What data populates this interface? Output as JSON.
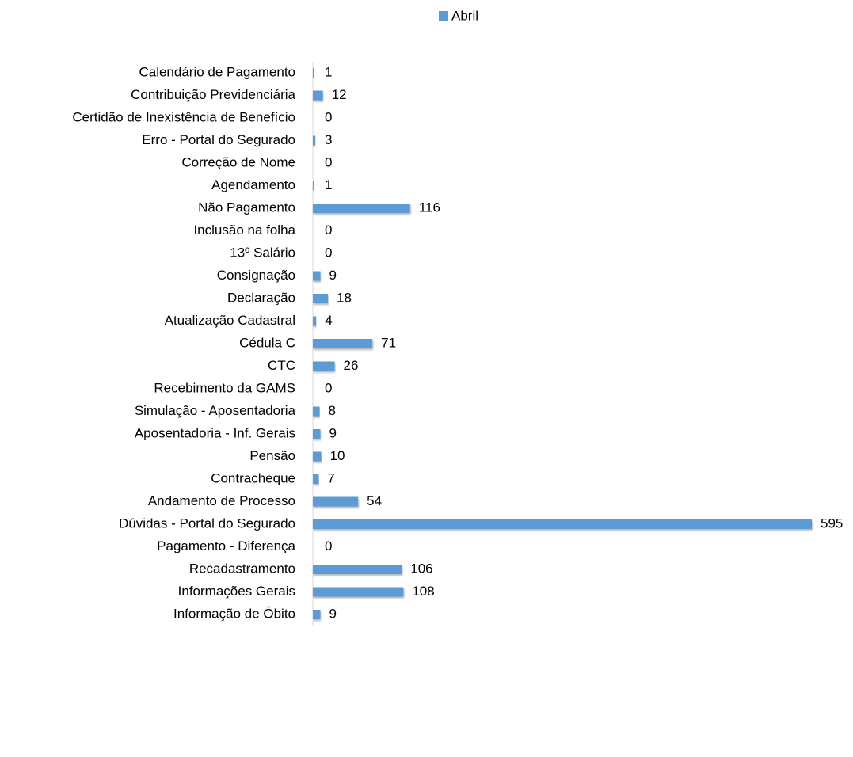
{
  "chart_data": {
    "type": "bar",
    "orientation": "horizontal",
    "legend": "top",
    "series": [
      {
        "name": "Abril",
        "color": "#5b9bd5",
        "values": [
          1,
          12,
          0,
          3,
          0,
          1,
          116,
          0,
          0,
          9,
          18,
          4,
          71,
          26,
          0,
          8,
          9,
          10,
          7,
          54,
          595,
          0,
          106,
          108,
          9
        ]
      }
    ],
    "categories": [
      "Calendário de Pagamento",
      "Contribuição Previdenciária",
      "Certidão de Inexistência de Benefício",
      "Erro - Portal do Segurado",
      "Correção de Nome",
      "Agendamento",
      "Não Pagamento",
      "Inclusão na folha",
      "13º Salário",
      "Consignação",
      "Declaração",
      "Atualização Cadastral",
      "Cédula C",
      "CTC",
      "Recebimento da GAMS",
      "Simulação - Aposentadoria",
      "Aposentadoria - Inf. Gerais",
      "Pensão",
      "Contracheque",
      "Andamento de Processo",
      "Dúvidas - Portal do Segurado",
      "Pagamento - Diferença",
      "Recadastramento",
      "Informações Gerais",
      "Informação de Óbito"
    ]
  }
}
